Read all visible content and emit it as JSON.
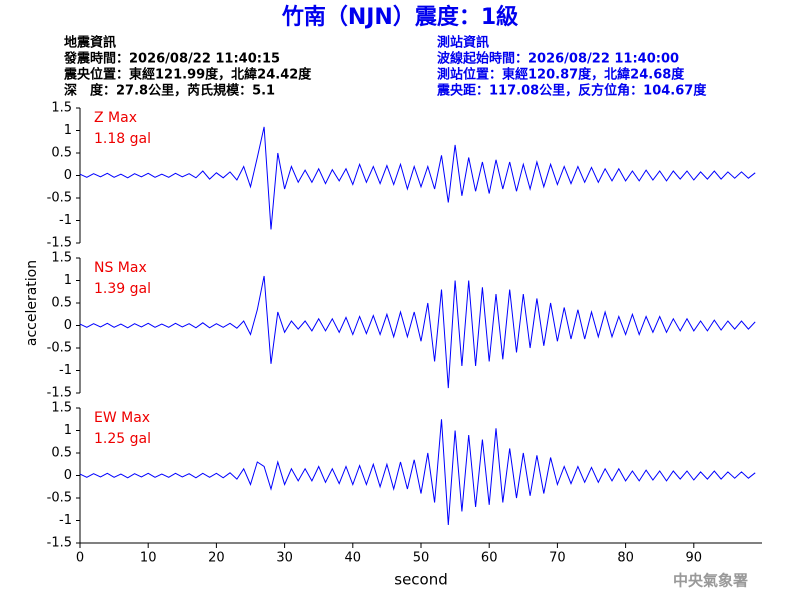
{
  "header": {
    "title": "竹南（NJN）震度：1級",
    "left": [
      "地震資訊",
      "發震時間：2026/08/22 11:40:15",
      "震央位置：東經121.99度，北緯24.42度",
      "深　度：27.8公里，芮氏規模：5.1"
    ],
    "right": [
      "測站資訊",
      "波線起始時間：2026/08/22 11:40:00",
      "測站位置：東經120.87度，北緯24.68度",
      "震央距：117.08公里，反方位角：104.67度"
    ]
  },
  "footer": "中央氣象署",
  "chart_data": [
    {
      "type": "line",
      "label": "Z Max",
      "max_label": "1.18 gal",
      "color": "#0000ff",
      "xlim": [
        0,
        100
      ],
      "ylim": [
        -1.5,
        1.5
      ],
      "yticks": [
        1.5,
        1,
        0.5,
        0,
        -0.5,
        -1,
        -1.5
      ],
      "x": [
        0,
        1,
        2,
        3,
        4,
        5,
        6,
        7,
        8,
        9,
        10,
        11,
        12,
        13,
        14,
        15,
        16,
        17,
        18,
        19,
        20,
        21,
        22,
        23,
        24,
        25,
        26,
        27,
        28,
        29,
        30,
        31,
        32,
        33,
        34,
        35,
        36,
        37,
        38,
        39,
        40,
        41,
        42,
        43,
        44,
        45,
        46,
        47,
        48,
        49,
        50,
        51,
        52,
        53,
        54,
        55,
        56,
        57,
        58,
        59,
        60,
        61,
        62,
        63,
        64,
        65,
        66,
        67,
        68,
        69,
        70,
        71,
        72,
        73,
        74,
        75,
        76,
        77,
        78,
        79,
        80,
        81,
        82,
        83,
        84,
        85,
        86,
        87,
        88,
        89,
        90,
        91,
        92,
        93,
        94,
        95,
        96,
        97,
        98,
        99
      ],
      "values": [
        0.03,
        -0.04,
        0.04,
        -0.03,
        0.05,
        -0.04,
        0.03,
        -0.05,
        0.04,
        -0.03,
        0.05,
        -0.04,
        0.03,
        -0.04,
        0.05,
        -0.03,
        0.04,
        -0.05,
        0.1,
        -0.08,
        0.06,
        -0.05,
        0.08,
        -0.1,
        0.2,
        -0.25,
        0.4,
        1.08,
        -1.2,
        0.5,
        -0.3,
        0.2,
        -0.15,
        0.12,
        -0.15,
        0.15,
        -0.18,
        0.13,
        -0.12,
        0.15,
        -0.2,
        0.25,
        -0.15,
        0.2,
        -0.18,
        0.22,
        -0.2,
        0.25,
        -0.3,
        0.2,
        -0.25,
        0.2,
        -0.3,
        0.45,
        -0.6,
        0.68,
        -0.45,
        0.4,
        -0.35,
        0.3,
        -0.4,
        0.35,
        -0.3,
        0.3,
        -0.35,
        0.25,
        -0.3,
        0.3,
        -0.25,
        0.25,
        -0.2,
        0.2,
        -0.18,
        0.2,
        -0.15,
        0.18,
        -0.15,
        0.15,
        -0.12,
        0.15,
        -0.12,
        0.1,
        -0.12,
        0.12,
        -0.1,
        0.1,
        -0.12,
        0.1,
        -0.08,
        0.1,
        -0.1,
        0.08,
        -0.08,
        0.1,
        -0.08,
        0.08,
        -0.06,
        0.08,
        -0.06,
        0.06
      ]
    },
    {
      "type": "line",
      "label": "NS Max",
      "max_label": "1.39 gal",
      "color": "#0000ff",
      "ylabel": "acceleration",
      "xlim": [
        0,
        100
      ],
      "ylim": [
        -1.5,
        1.5
      ],
      "yticks": [
        1.5,
        1,
        0.5,
        0,
        -0.5,
        -1,
        -1.5
      ],
      "x": [
        0,
        1,
        2,
        3,
        4,
        5,
        6,
        7,
        8,
        9,
        10,
        11,
        12,
        13,
        14,
        15,
        16,
        17,
        18,
        19,
        20,
        21,
        22,
        23,
        24,
        25,
        26,
        27,
        28,
        29,
        30,
        31,
        32,
        33,
        34,
        35,
        36,
        37,
        38,
        39,
        40,
        41,
        42,
        43,
        44,
        45,
        46,
        47,
        48,
        49,
        50,
        51,
        52,
        53,
        54,
        55,
        56,
        57,
        58,
        59,
        60,
        61,
        62,
        63,
        64,
        65,
        66,
        67,
        68,
        69,
        70,
        71,
        72,
        73,
        74,
        75,
        76,
        77,
        78,
        79,
        80,
        81,
        82,
        83,
        84,
        85,
        86,
        87,
        88,
        89,
        90,
        91,
        92,
        93,
        94,
        95,
        96,
        97,
        98,
        99
      ],
      "values": [
        0.03,
        -0.04,
        0.04,
        -0.03,
        0.05,
        -0.04,
        0.03,
        -0.05,
        0.04,
        -0.03,
        0.05,
        -0.04,
        0.03,
        -0.04,
        0.05,
        -0.03,
        0.04,
        -0.05,
        0.06,
        -0.05,
        0.04,
        -0.04,
        0.05,
        -0.06,
        0.1,
        -0.2,
        0.35,
        1.1,
        -0.85,
        0.3,
        -0.15,
        0.1,
        -0.08,
        0.1,
        -0.12,
        0.15,
        -0.12,
        0.15,
        -0.15,
        0.18,
        -0.2,
        0.2,
        -0.18,
        0.22,
        -0.2,
        0.25,
        -0.25,
        0.3,
        -0.25,
        0.3,
        -0.35,
        0.5,
        -0.8,
        0.8,
        -1.39,
        1.0,
        -0.9,
        1.0,
        -0.9,
        0.85,
        -0.8,
        0.7,
        -0.75,
        0.8,
        -0.6,
        0.7,
        -0.5,
        0.6,
        -0.45,
        0.5,
        -0.35,
        0.4,
        -0.3,
        0.35,
        -0.3,
        0.3,
        -0.25,
        0.3,
        -0.25,
        0.2,
        -0.2,
        0.25,
        -0.2,
        0.2,
        -0.15,
        0.2,
        -0.15,
        0.15,
        -0.12,
        0.15,
        -0.12,
        0.1,
        -0.12,
        0.12,
        -0.1,
        0.1,
        -0.08,
        0.1,
        -0.08,
        0.08
      ]
    },
    {
      "type": "line",
      "label": "EW Max",
      "max_label": "1.25 gal",
      "color": "#0000ff",
      "xlabel": "second",
      "xlim": [
        0,
        100
      ],
      "xticks": [
        0,
        10,
        20,
        30,
        40,
        50,
        60,
        70,
        80,
        90
      ],
      "ylim": [
        -1.5,
        1.5
      ],
      "yticks": [
        1.5,
        1,
        0.5,
        0,
        -0.5,
        -1,
        -1.5
      ],
      "x": [
        0,
        1,
        2,
        3,
        4,
        5,
        6,
        7,
        8,
        9,
        10,
        11,
        12,
        13,
        14,
        15,
        16,
        17,
        18,
        19,
        20,
        21,
        22,
        23,
        24,
        25,
        26,
        27,
        28,
        29,
        30,
        31,
        32,
        33,
        34,
        35,
        36,
        37,
        38,
        39,
        40,
        41,
        42,
        43,
        44,
        45,
        46,
        47,
        48,
        49,
        50,
        51,
        52,
        53,
        54,
        55,
        56,
        57,
        58,
        59,
        60,
        61,
        62,
        63,
        64,
        65,
        66,
        67,
        68,
        69,
        70,
        71,
        72,
        73,
        74,
        75,
        76,
        77,
        78,
        79,
        80,
        81,
        82,
        83,
        84,
        85,
        86,
        87,
        88,
        89,
        90,
        91,
        92,
        93,
        94,
        95,
        96,
        97,
        98,
        99
      ],
      "values": [
        0.03,
        -0.04,
        0.04,
        -0.03,
        0.05,
        -0.04,
        0.03,
        -0.05,
        0.04,
        -0.03,
        0.05,
        -0.04,
        0.03,
        -0.04,
        0.05,
        -0.03,
        0.04,
        -0.05,
        0.05,
        -0.04,
        0.05,
        -0.05,
        0.06,
        -0.08,
        0.15,
        -0.2,
        0.3,
        0.2,
        -0.3,
        0.3,
        -0.2,
        0.15,
        -0.12,
        0.15,
        -0.12,
        0.2,
        -0.15,
        0.15,
        -0.18,
        0.2,
        -0.2,
        0.22,
        -0.2,
        0.25,
        -0.25,
        0.25,
        -0.3,
        0.3,
        -0.3,
        0.35,
        -0.4,
        0.5,
        -0.6,
        1.25,
        -1.1,
        1.0,
        -0.8,
        0.9,
        -0.7,
        0.8,
        -0.65,
        1.05,
        -0.6,
        0.6,
        -0.5,
        0.5,
        -0.45,
        0.45,
        -0.4,
        0.4,
        -0.2,
        0.2,
        -0.18,
        0.2,
        -0.15,
        0.18,
        -0.15,
        0.15,
        -0.12,
        0.15,
        -0.12,
        0.1,
        -0.12,
        0.12,
        -0.1,
        0.1,
        -0.12,
        0.1,
        -0.08,
        0.1,
        -0.1,
        0.08,
        -0.08,
        0.1,
        -0.08,
        0.08,
        -0.06,
        0.08,
        -0.06,
        0.06
      ]
    }
  ]
}
